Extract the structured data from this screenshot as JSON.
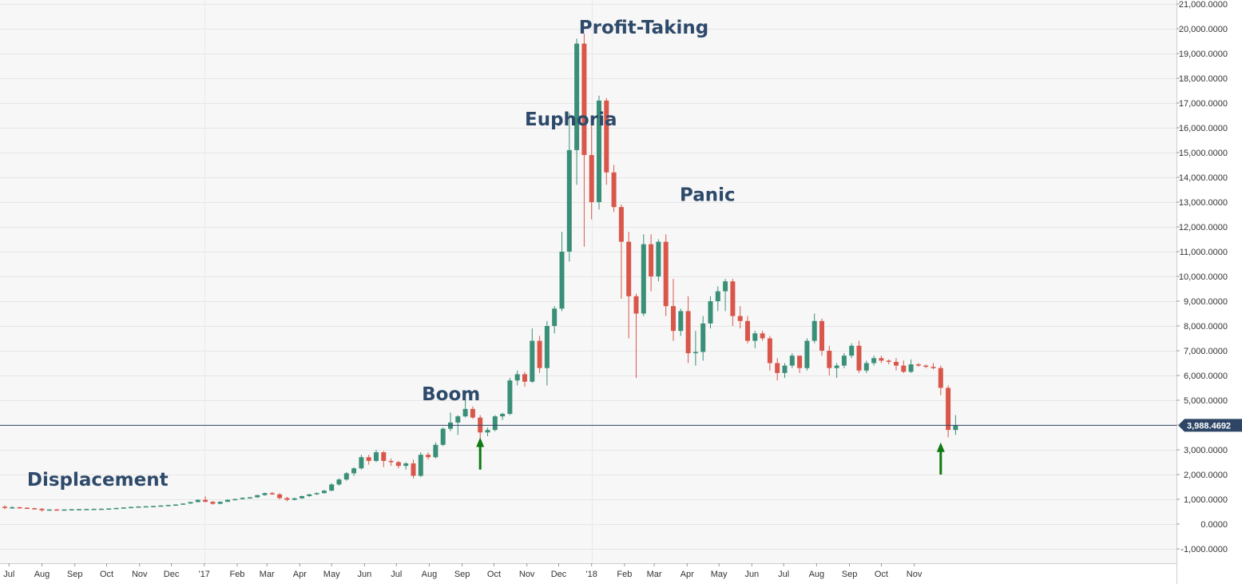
{
  "colors": {
    "up": "#3a8f78",
    "down": "#d9574a",
    "price_line": "#2e4566",
    "annotation": "#2e4a6b",
    "arrow": "#0f7a0f",
    "plot_bg": "#f7f7f7"
  },
  "chart_data": {
    "type": "candlestick",
    "interval": "weekly",
    "start_date": "2016-06-27",
    "y_axis": {
      "min": -1000,
      "max": 21000,
      "step": 1000,
      "tick_labels": [
        "-1,000.0000",
        "0.0000",
        "1,000.0000",
        "2,000.0000",
        "3,000.0000",
        "4,000.0000",
        "5,000.0000",
        "6,000.0000",
        "7,000.0000",
        "8,000.0000",
        "9,000.0000",
        "10,000.0000",
        "11,000.0000",
        "12,000.0000",
        "13,000.0000",
        "14,000.0000",
        "15,000.0000",
        "16,000.0000",
        "17,000.0000",
        "18,000.0000",
        "19,000.0000",
        "20,000.0000",
        "21,000.0000"
      ]
    },
    "x_axis": {
      "ticks": [
        {
          "label": "Jul",
          "date": "2016-07-01"
        },
        {
          "label": "Aug",
          "date": "2016-08-01"
        },
        {
          "label": "Sep",
          "date": "2016-09-01"
        },
        {
          "label": "Oct",
          "date": "2016-10-01"
        },
        {
          "label": "Nov",
          "date": "2016-11-01"
        },
        {
          "label": "Dec",
          "date": "2016-12-01"
        },
        {
          "label": "'17",
          "date": "2017-01-01"
        },
        {
          "label": "Feb",
          "date": "2017-02-01"
        },
        {
          "label": "Mar",
          "date": "2017-03-01"
        },
        {
          "label": "Apr",
          "date": "2017-04-01"
        },
        {
          "label": "May",
          "date": "2017-05-01"
        },
        {
          "label": "Jun",
          "date": "2017-06-01"
        },
        {
          "label": "Jul",
          "date": "2017-07-01"
        },
        {
          "label": "Aug",
          "date": "2017-08-01"
        },
        {
          "label": "Sep",
          "date": "2017-09-01"
        },
        {
          "label": "Oct",
          "date": "2017-10-01"
        },
        {
          "label": "Nov",
          "date": "2017-11-01"
        },
        {
          "label": "Dec",
          "date": "2017-12-01"
        },
        {
          "label": "'18",
          "date": "2018-01-01"
        },
        {
          "label": "Feb",
          "date": "2018-02-01"
        },
        {
          "label": "Mar",
          "date": "2018-03-01"
        },
        {
          "label": "Apr",
          "date": "2018-04-01"
        },
        {
          "label": "May",
          "date": "2018-05-01"
        },
        {
          "label": "Jun",
          "date": "2018-06-01"
        },
        {
          "label": "Jul",
          "date": "2018-07-01"
        },
        {
          "label": "Aug",
          "date": "2018-08-01"
        },
        {
          "label": "Sep",
          "date": "2018-09-01"
        },
        {
          "label": "Oct",
          "date": "2018-10-01"
        },
        {
          "label": "Nov",
          "date": "2018-11-01"
        }
      ],
      "year_grid_dates": [
        "2017-01-01",
        "2018-01-01"
      ]
    },
    "current_price": 3988.4692,
    "current_price_label": "3,988.4692",
    "annotations": [
      {
        "text": "Displacement",
        "date": "2016-07-18",
        "y": 1550
      },
      {
        "text": "Boom",
        "date": "2017-07-25",
        "y": 5000
      },
      {
        "text": "Euphoria",
        "date": "2017-10-30",
        "y": 16100
      },
      {
        "text": "Profit-Taking",
        "date": "2017-12-20",
        "y": 19800
      },
      {
        "text": "Panic",
        "date": "2018-03-25",
        "y": 13050
      }
    ],
    "arrows": [
      {
        "date": "2017-09-18",
        "y_tail": 2200,
        "y_head": 3500
      },
      {
        "date": "2018-11-26",
        "y_tail": 2000,
        "y_head": 3300
      }
    ],
    "candles": [
      [
        700,
        760,
        600,
        650
      ],
      [
        650,
        720,
        620,
        680
      ],
      [
        680,
        700,
        630,
        660
      ],
      [
        660,
        680,
        610,
        640
      ],
      [
        640,
        660,
        600,
        620
      ],
      [
        620,
        640,
        500,
        560
      ],
      [
        560,
        600,
        540,
        590
      ],
      [
        590,
        610,
        560,
        580
      ],
      [
        580,
        600,
        570,
        590
      ],
      [
        590,
        610,
        580,
        600
      ],
      [
        600,
        615,
        590,
        605
      ],
      [
        605,
        620,
        595,
        610
      ],
      [
        610,
        625,
        600,
        615
      ],
      [
        615,
        630,
        605,
        620
      ],
      [
        620,
        640,
        610,
        630
      ],
      [
        630,
        660,
        620,
        650
      ],
      [
        650,
        680,
        640,
        670
      ],
      [
        670,
        700,
        660,
        690
      ],
      [
        690,
        720,
        680,
        710
      ],
      [
        710,
        730,
        700,
        720
      ],
      [
        720,
        740,
        710,
        730
      ],
      [
        730,
        760,
        720,
        750
      ],
      [
        750,
        780,
        740,
        770
      ],
      [
        770,
        800,
        760,
        790
      ],
      [
        790,
        840,
        780,
        830
      ],
      [
        830,
        900,
        820,
        890
      ],
      [
        890,
        1000,
        870,
        980
      ],
      [
        980,
        1120,
        880,
        900
      ],
      [
        900,
        930,
        780,
        820
      ],
      [
        820,
        920,
        800,
        900
      ],
      [
        900,
        1000,
        890,
        980
      ],
      [
        980,
        1030,
        960,
        1010
      ],
      [
        1010,
        1080,
        990,
        1060
      ],
      [
        1060,
        1100,
        1040,
        1080
      ],
      [
        1080,
        1180,
        1060,
        1170
      ],
      [
        1170,
        1270,
        1150,
        1250
      ],
      [
        1250,
        1300,
        1180,
        1200
      ],
      [
        1200,
        1250,
        1000,
        1050
      ],
      [
        1050,
        1100,
        920,
        980
      ],
      [
        980,
        1070,
        960,
        1040
      ],
      [
        1040,
        1150,
        1020,
        1130
      ],
      [
        1130,
        1220,
        1100,
        1200
      ],
      [
        1200,
        1280,
        1180,
        1250
      ],
      [
        1250,
        1380,
        1230,
        1350
      ],
      [
        1350,
        1650,
        1330,
        1600
      ],
      [
        1600,
        1850,
        1550,
        1800
      ],
      [
        1800,
        2100,
        1750,
        2050
      ],
      [
        2050,
        2300,
        1950,
        2250
      ],
      [
        2250,
        2800,
        2200,
        2700
      ],
      [
        2700,
        2800,
        2400,
        2550
      ],
      [
        2550,
        3000,
        2500,
        2900
      ],
      [
        2900,
        2950,
        2300,
        2550
      ],
      [
        2550,
        2650,
        2350,
        2500
      ],
      [
        2500,
        2550,
        2250,
        2350
      ],
      [
        2350,
        2500,
        2200,
        2450
      ],
      [
        2450,
        2600,
        1850,
        1950
      ],
      [
        1950,
        2900,
        1900,
        2800
      ],
      [
        2800,
        2900,
        2600,
        2700
      ],
      [
        2700,
        3300,
        2650,
        3200
      ],
      [
        3200,
        3900,
        3150,
        3850
      ],
      [
        3850,
        4500,
        3750,
        4100
      ],
      [
        4100,
        4400,
        3600,
        4350
      ],
      [
        4350,
        5000,
        4300,
        4650
      ],
      [
        4650,
        4750,
        4250,
        4300
      ],
      [
        4300,
        4400,
        3000,
        3700
      ],
      [
        3700,
        3900,
        3550,
        3800
      ],
      [
        3800,
        4400,
        3750,
        4350
      ],
      [
        4350,
        4500,
        4200,
        4450
      ],
      [
        4450,
        5900,
        4400,
        5800
      ],
      [
        5800,
        6200,
        5600,
        6050
      ],
      [
        6050,
        6150,
        5550,
        5750
      ],
      [
        5750,
        7900,
        5700,
        7400
      ],
      [
        7400,
        7600,
        6100,
        6300
      ],
      [
        6300,
        8200,
        5600,
        8000
      ],
      [
        8000,
        8800,
        7700,
        8700
      ],
      [
        8700,
        11800,
        8600,
        11000
      ],
      [
        11000,
        16600,
        10600,
        15100
      ],
      [
        15100,
        19600,
        13700,
        19400
      ],
      [
        19400,
        19800,
        11200,
        14900
      ],
      [
        14900,
        16500,
        12300,
        13000
      ],
      [
        13000,
        17300,
        12700,
        17100
      ],
      [
        17100,
        17200,
        13700,
        14200
      ],
      [
        14200,
        14500,
        12600,
        12800
      ],
      [
        12800,
        12900,
        9100,
        11400
      ],
      [
        11400,
        11800,
        7500,
        9200
      ],
      [
        9200,
        9300,
        5900,
        8500
      ],
      [
        8500,
        11700,
        8400,
        11300
      ],
      [
        11300,
        11700,
        9400,
        10000
      ],
      [
        10000,
        11500,
        9800,
        11400
      ],
      [
        11400,
        11700,
        8400,
        8800
      ],
      [
        8800,
        9900,
        7400,
        7800
      ],
      [
        7800,
        8700,
        7600,
        8600
      ],
      [
        8600,
        9200,
        6500,
        6900
      ],
      [
        6900,
        7800,
        6400,
        6950
      ],
      [
        6950,
        8400,
        6600,
        8100
      ],
      [
        8100,
        9200,
        7900,
        9000
      ],
      [
        9000,
        9600,
        8600,
        9400
      ],
      [
        9400,
        9900,
        8600,
        9800
      ],
      [
        9800,
        9900,
        8000,
        8400
      ],
      [
        8400,
        8800,
        7900,
        8200
      ],
      [
        8200,
        8400,
        7300,
        7400
      ],
      [
        7400,
        7800,
        7100,
        7700
      ],
      [
        7700,
        7800,
        7400,
        7500
      ],
      [
        7500,
        7600,
        6200,
        6500
      ],
      [
        6500,
        6700,
        5800,
        6100
      ],
      [
        6100,
        6500,
        5900,
        6400
      ],
      [
        6400,
        6900,
        6300,
        6800
      ],
      [
        6800,
        6800,
        6100,
        6300
      ],
      [
        6300,
        7500,
        6200,
        7400
      ],
      [
        7400,
        8500,
        7300,
        8200
      ],
      [
        8200,
        8300,
        6800,
        7000
      ],
      [
        7000,
        7200,
        6000,
        6300
      ],
      [
        6300,
        6500,
        5900,
        6400
      ],
      [
        6400,
        6900,
        6300,
        6800
      ],
      [
        6800,
        7300,
        6700,
        7200
      ],
      [
        7200,
        7400,
        6100,
        6200
      ],
      [
        6200,
        6600,
        6100,
        6500
      ],
      [
        6500,
        6800,
        6400,
        6700
      ],
      [
        6700,
        6800,
        6500,
        6600
      ],
      [
        6600,
        6650,
        6450,
        6550
      ],
      [
        6550,
        6700,
        6200,
        6400
      ],
      [
        6400,
        6600,
        6100,
        6150
      ],
      [
        6150,
        6650,
        6100,
        6450
      ],
      [
        6450,
        6500,
        6350,
        6400
      ],
      [
        6400,
        6450,
        6300,
        6350
      ],
      [
        6350,
        6500,
        6250,
        6300
      ],
      [
        6300,
        6400,
        5200,
        5500
      ],
      [
        5500,
        5600,
        3500,
        3800
      ],
      [
        3800,
        4400,
        3600,
        3988.4692
      ]
    ]
  },
  "annotation_labels": [
    "Displacement",
    "Boom",
    "Euphoria",
    "Profit-Taking",
    "Panic"
  ]
}
